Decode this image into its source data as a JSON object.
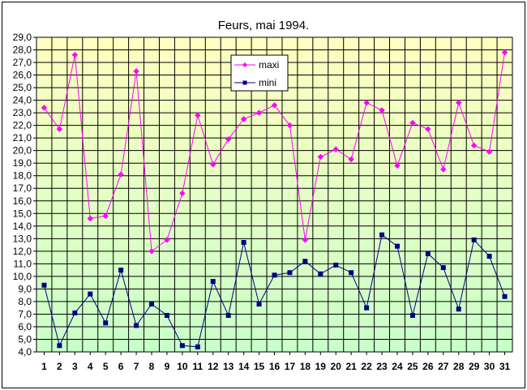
{
  "chart_data": {
    "type": "line",
    "title": "Feurs, mai 1994.",
    "xlabel": "",
    "ylabel": "",
    "categories": [
      "1",
      "2",
      "3",
      "4",
      "5",
      "6",
      "7",
      "8",
      "9",
      "10",
      "11",
      "12",
      "13",
      "14",
      "15",
      "16",
      "17",
      "18",
      "19",
      "20",
      "21",
      "22",
      "23",
      "24",
      "25",
      "26",
      "27",
      "28",
      "29",
      "30",
      "31"
    ],
    "ylim": [
      4.0,
      29.0
    ],
    "ystep": 1.0,
    "yticks": [
      "4,0",
      "5,0",
      "6,0",
      "7,0",
      "8,0",
      "9,0",
      "10,0",
      "11,0",
      "12,0",
      "13,0",
      "14,0",
      "15,0",
      "16,0",
      "17,0",
      "18,0",
      "19,0",
      "20,0",
      "21,0",
      "22,0",
      "23,0",
      "24,0",
      "25,0",
      "26,0",
      "27,0",
      "28,0",
      "29,0"
    ],
    "grid": true,
    "legend_position": "top-center",
    "series": [
      {
        "name": "maxi",
        "color": "#ff00ff",
        "marker": "diamond",
        "values": [
          23.4,
          21.7,
          27.6,
          14.6,
          14.8,
          18.1,
          26.3,
          12.0,
          12.9,
          16.6,
          22.8,
          18.9,
          20.9,
          22.5,
          23.0,
          23.6,
          22.0,
          12.9,
          19.5,
          20.1,
          19.3,
          23.8,
          23.2,
          18.8,
          22.2,
          21.7,
          18.5,
          23.8,
          20.4,
          19.9,
          27.8
        ]
      },
      {
        "name": "mini",
        "color": "#000080",
        "marker": "square",
        "values": [
          9.3,
          4.5,
          7.1,
          8.6,
          6.3,
          10.5,
          6.1,
          7.8,
          6.9,
          4.5,
          4.4,
          9.6,
          6.9,
          12.7,
          7.8,
          10.1,
          10.3,
          11.2,
          10.2,
          10.9,
          10.3,
          7.5,
          13.3,
          12.4,
          6.9,
          11.8,
          10.7,
          7.4,
          12.9,
          11.6,
          8.4
        ]
      }
    ],
    "background_gradient": {
      "top": "#ffffc0",
      "bottom": "#c8ffc8"
    }
  }
}
